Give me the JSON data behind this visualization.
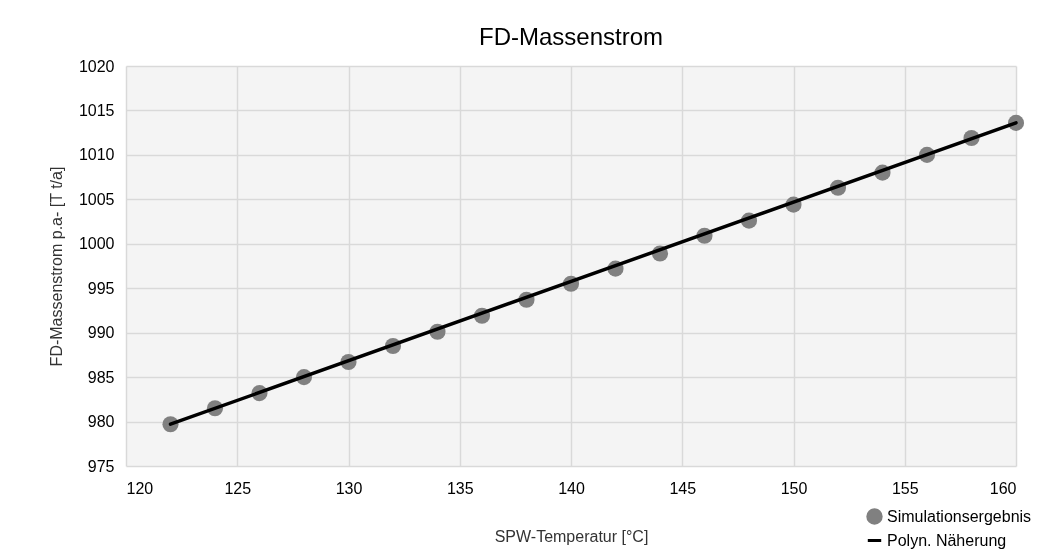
{
  "chart_data": {
    "type": "scatter",
    "title": "FD-Massenstrom",
    "xlabel": "SPW-Temperatur [°C]",
    "ylabel": "FD-Massenstrom p.a- [T t/a]",
    "x": [
      122,
      124,
      126,
      128,
      130,
      132,
      134,
      136,
      138,
      140,
      142,
      144,
      146,
      148,
      150,
      152,
      154,
      156,
      158,
      160
    ],
    "series": [
      {
        "name": "Simulationsergebnis",
        "color": "#808080",
        "marker": "circle",
        "values": [
          979.7,
          981.5,
          983.2,
          985.0,
          986.7,
          988.5,
          990.1,
          991.9,
          993.7,
          995.5,
          997.2,
          998.9,
          1000.9,
          1002.6,
          1004.4,
          1006.3,
          1008.0,
          1010.0,
          1011.9,
          1013.6
        ]
      },
      {
        "name": "Polyn. Näherung",
        "type": "line",
        "color": "#000000",
        "line_style": "solid",
        "x": [
          122,
          160
        ],
        "values": [
          979.7,
          1013.6
        ]
      }
    ],
    "xlim": [
      120,
      160
    ],
    "xticks": [
      120,
      125,
      130,
      135,
      140,
      145,
      150,
      155,
      160
    ],
    "ylim": [
      975,
      1020
    ],
    "yticks": [
      975,
      980,
      985,
      990,
      995,
      1000,
      1005,
      1010,
      1015,
      1020
    ],
    "grid": true,
    "legend": "bottom right"
  }
}
